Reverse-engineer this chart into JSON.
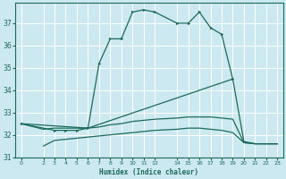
{
  "xlabel": "Humidex (Indice chaleur)",
  "background_color": "#cce8f0",
  "grid_color": "#ffffff",
  "line_color": "#1a6b5a",
  "xlim": [
    -0.5,
    23.5
  ],
  "ylim": [
    31,
    37.9
  ],
  "yticks": [
    31,
    32,
    33,
    34,
    35,
    36,
    37
  ],
  "xtick_labels": [
    "0",
    "2",
    "3",
    "4",
    "5",
    "6",
    "7",
    "8",
    "9",
    "101112",
    "",
    "141516171819202122",
    "",
    "",
    "",
    "",
    "",
    "",
    "",
    "",
    "",
    "23"
  ],
  "line1_x": [
    0,
    3,
    4,
    5,
    6,
    7,
    8,
    9,
    10,
    11,
    12,
    14,
    15,
    16,
    17,
    18,
    19
  ],
  "line1_y": [
    32.5,
    32.2,
    32.2,
    32.2,
    32.3,
    35.2,
    36.3,
    36.3,
    37.5,
    37.6,
    37.5,
    37.0,
    37.0,
    37.5,
    36.8,
    36.5,
    34.5
  ],
  "line2_x": [
    0,
    6,
    19,
    20,
    21,
    22,
    23
  ],
  "line2_y": [
    32.5,
    32.3,
    34.5,
    31.7,
    31.6,
    31.6,
    31.6
  ],
  "line3_x": [
    0,
    2,
    3,
    4,
    5,
    6,
    7,
    8,
    9,
    10,
    11,
    12,
    14,
    15,
    16,
    17,
    18,
    19,
    20,
    21,
    22,
    23
  ],
  "line3_y": [
    32.5,
    32.25,
    32.3,
    32.3,
    32.3,
    32.3,
    32.35,
    32.45,
    32.5,
    32.6,
    32.65,
    32.7,
    32.75,
    32.8,
    32.8,
    32.8,
    32.75,
    32.7,
    31.65,
    31.6,
    31.6,
    31.6
  ],
  "line4_x": [
    2,
    3,
    4,
    5,
    6,
    7,
    8,
    9,
    10,
    11,
    12,
    14,
    15,
    16,
    17,
    18,
    19,
    20,
    21,
    22,
    23
  ],
  "line4_y": [
    31.5,
    31.75,
    31.8,
    31.85,
    31.9,
    31.95,
    32.0,
    32.05,
    32.1,
    32.15,
    32.2,
    32.25,
    32.3,
    32.3,
    32.25,
    32.2,
    32.1,
    31.65,
    31.6,
    31.6,
    31.6
  ]
}
